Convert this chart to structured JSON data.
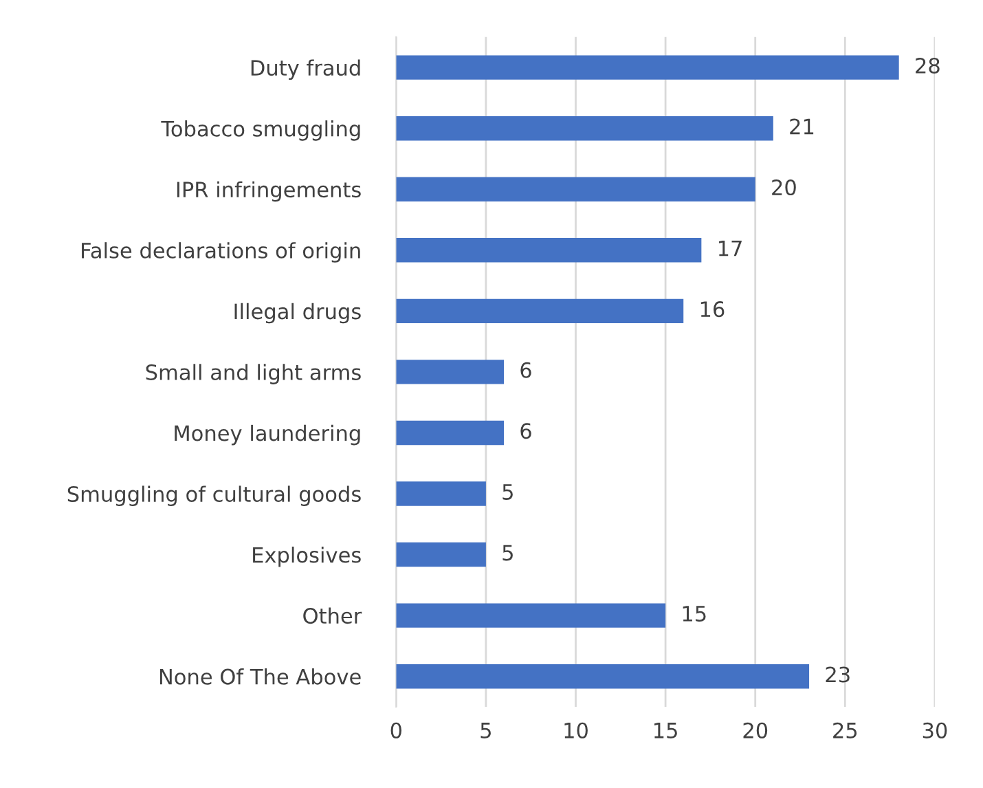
{
  "chart_data": {
    "type": "bar",
    "orientation": "horizontal",
    "categories": [
      "Duty fraud",
      "Tobacco smuggling",
      "IPR infringements",
      "False declarations of origin",
      "Illegal drugs",
      "Small and light arms",
      "Money laundering",
      "Smuggling of cultural goods",
      "Explosives",
      "Other",
      "None Of The Above"
    ],
    "values": [
      28,
      21,
      20,
      17,
      16,
      6,
      6,
      5,
      5,
      15,
      23
    ],
    "color": "#4472c4",
    "xlim": [
      0,
      30
    ],
    "xticks": [
      0,
      5,
      10,
      15,
      20,
      25,
      30
    ],
    "grid": "x",
    "data_labels": true,
    "legend": false
  }
}
